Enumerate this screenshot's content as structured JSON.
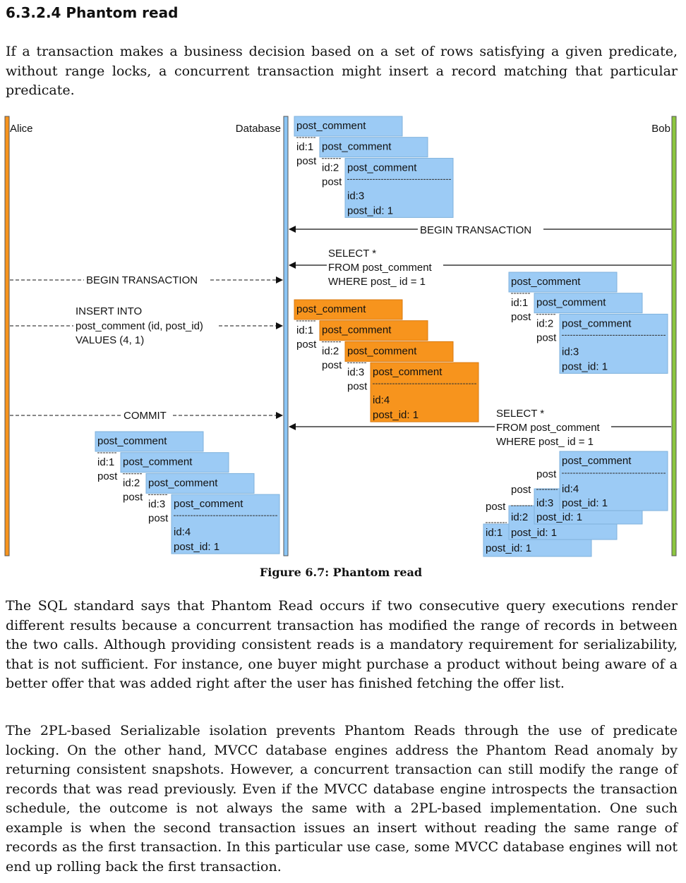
{
  "section_title": "6.3.2.4 Phantom read",
  "intro_paragraph": "If a transaction makes a business decision based on a set of rows satisfying a given predicate, without range locks, a concurrent transaction might insert a record matching that particular predicate.",
  "figure": {
    "caption": "Figure 6.7: Phantom read",
    "lanes": {
      "alice": "Alice",
      "database": "Database",
      "bob": "Bob"
    },
    "messages": {
      "bob_begin": "BEGIN TRANSACTION",
      "bob_select_1": [
        "SELECT *",
        "FROM post_comment",
        "WHERE post_ id = 1"
      ],
      "alice_begin": "BEGIN TRANSACTION",
      "alice_insert": [
        "INSERT INTO",
        "post_comment (id, post_id)",
        "VALUES (4, 1)"
      ],
      "alice_commit": "COMMIT",
      "bob_select_2": [
        "SELECT *",
        "FROM post_comment",
        "WHERE post_ id = 1"
      ]
    },
    "record_labels": {
      "table": "post_comment",
      "post_abbrev": "post",
      "post_id": "post_id: 1",
      "ids": [
        "id:1",
        "id:2",
        "id:3",
        "id:4"
      ]
    },
    "colors": {
      "alice_lane": "#f7941d",
      "database_lane": "#8bc5f5",
      "bob_lane": "#8cc63f",
      "record_blue": "#9ccbf5",
      "record_orange": "#f7941d"
    }
  },
  "body_paragraph_1": "The SQL standard says that Phantom Read occurs if two consecutive query executions render different results because a concurrent transaction has modified the range of records in between the two calls. Although providing consistent reads is a mandatory requirement for serializability, that is not sufficient. For instance, one buyer might purchase a product without being aware of a better offer that was added right after the user has finished fetching the offer list.",
  "body_paragraph_2": "The 2PL-based Serializable isolation prevents Phantom Reads through the use of predicate locking. On the other hand, MVCC database engines address the Phantom Read anomaly by returning consistent snapshots. However, a concurrent transaction can still modify the range of records that was read previously. Even if the MVCC database engine introspects the transaction schedule, the outcome is not always the same with a 2PL-based implementation. One such example is when the second transaction issues an insert without reading the same range of records as the first transaction. In this particular use case, some MVCC database engines will not end up rolling back the first transaction."
}
